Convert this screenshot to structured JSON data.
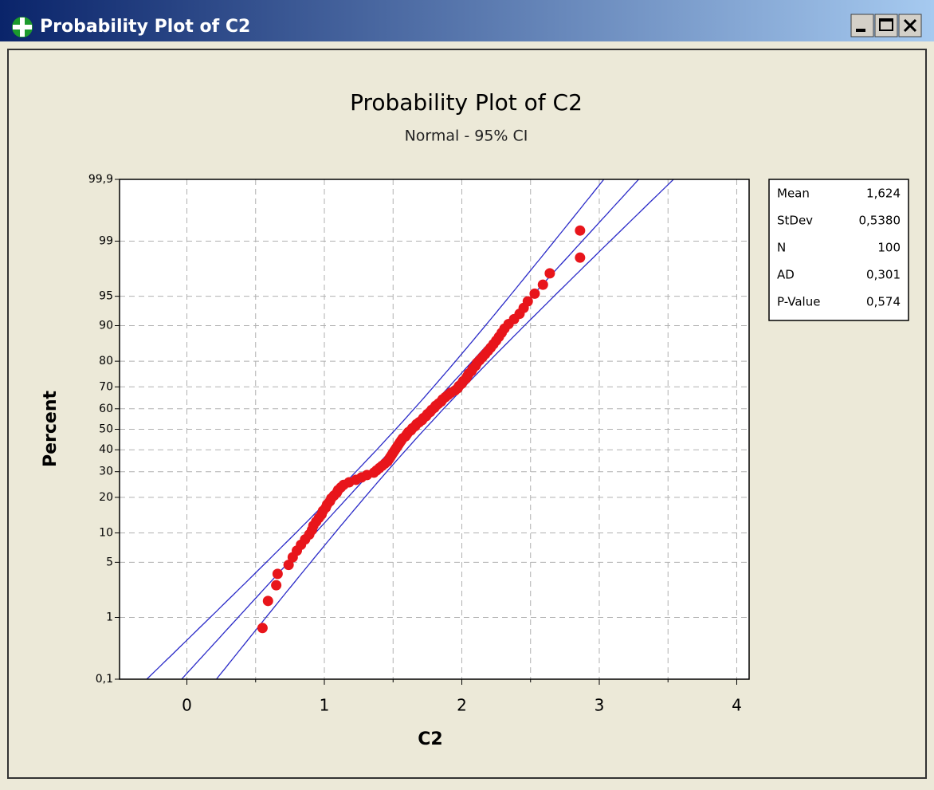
{
  "window": {
    "title": "Probability Plot of C2"
  },
  "chart_data": {
    "type": "probability",
    "title": "Probability Plot of C2",
    "subtitle": "Normal - 95% CI",
    "x_label": "C2",
    "y_label": "Percent",
    "yscale": "normal-probability",
    "grid": true,
    "xlim": [
      -0.49,
      4.09
    ],
    "xticks": [
      0,
      1,
      2,
      3,
      4
    ],
    "xminor": [
      -0.5,
      0.5,
      1.5,
      2.5,
      3.5
    ],
    "ylim": [
      0.1,
      99.9
    ],
    "yticks": [
      {
        "value": 0.1,
        "label": "0,1"
      },
      1,
      5,
      10,
      20,
      30,
      40,
      50,
      60,
      70,
      80,
      90,
      95,
      99,
      {
        "value": 99.9,
        "label": "99,9"
      }
    ],
    "stats": [
      {
        "name": "Mean",
        "value": 1.624,
        "label": "1,624"
      },
      {
        "name": "StDev",
        "value": 0.538,
        "label": "0,5380"
      },
      {
        "name": "N",
        "value": 100
      },
      {
        "name": "AD",
        "value": 0.301,
        "label": "0,301"
      },
      {
        "name": "P-Value",
        "value": 0.574,
        "label": "0,574"
      }
    ],
    "point_color": "#e8151b",
    "line_color": "#2b2bc8",
    "x": [
      0.55,
      0.59,
      0.65,
      0.66,
      0.74,
      0.77,
      0.8,
      0.83,
      0.86,
      0.89,
      0.91,
      0.92,
      0.94,
      0.96,
      0.98,
      0.99,
      1.01,
      1.02,
      1.04,
      1.05,
      1.07,
      1.09,
      1.1,
      1.12,
      1.14,
      1.18,
      1.23,
      1.27,
      1.31,
      1.36,
      1.38,
      1.4,
      1.42,
      1.44,
      1.46,
      1.47,
      1.48,
      1.49,
      1.5,
      1.51,
      1.52,
      1.53,
      1.54,
      1.55,
      1.56,
      1.57,
      1.59,
      1.6,
      1.61,
      1.63,
      1.64,
      1.66,
      1.67,
      1.69,
      1.71,
      1.72,
      1.74,
      1.75,
      1.77,
      1.78,
      1.8,
      1.81,
      1.83,
      1.85,
      1.86,
      1.88,
      1.9,
      1.92,
      1.95,
      1.97,
      1.98,
      2.0,
      2.01,
      2.03,
      2.04,
      2.05,
      2.07,
      2.08,
      2.1,
      2.11,
      2.13,
      2.15,
      2.17,
      2.19,
      2.21,
      2.23,
      2.25,
      2.27,
      2.29,
      2.31,
      2.34,
      2.38,
      2.42,
      2.45,
      2.48,
      2.53,
      2.59,
      2.64,
      2.86,
      2.86
    ],
    "values": [
      0.7,
      1.69,
      2.69,
      3.69,
      4.68,
      5.68,
      6.67,
      7.67,
      8.67,
      9.66,
      10.66,
      11.65,
      12.65,
      13.65,
      14.64,
      15.64,
      16.63,
      17.63,
      18.63,
      19.62,
      20.62,
      21.61,
      22.61,
      23.61,
      24.6,
      25.6,
      26.59,
      27.59,
      28.59,
      29.58,
      30.58,
      31.57,
      32.57,
      33.57,
      34.56,
      35.56,
      36.55,
      37.55,
      38.55,
      39.54,
      40.54,
      41.53,
      42.53,
      43.53,
      44.52,
      45.52,
      46.51,
      47.51,
      48.51,
      49.5,
      50.5,
      51.49,
      52.49,
      53.49,
      54.48,
      55.48,
      56.47,
      57.47,
      58.47,
      59.46,
      60.46,
      61.45,
      62.45,
      63.45,
      64.44,
      65.44,
      66.43,
      67.43,
      68.43,
      69.42,
      70.42,
      71.41,
      72.41,
      73.41,
      74.4,
      75.4,
      76.39,
      77.39,
      78.39,
      79.38,
      80.38,
      81.37,
      82.37,
      83.37,
      84.36,
      85.36,
      86.35,
      87.35,
      88.35,
      89.34,
      90.34,
      91.33,
      92.33,
      93.33,
      94.32,
      95.32,
      96.31,
      97.31,
      98.31,
      99.3
    ]
  }
}
